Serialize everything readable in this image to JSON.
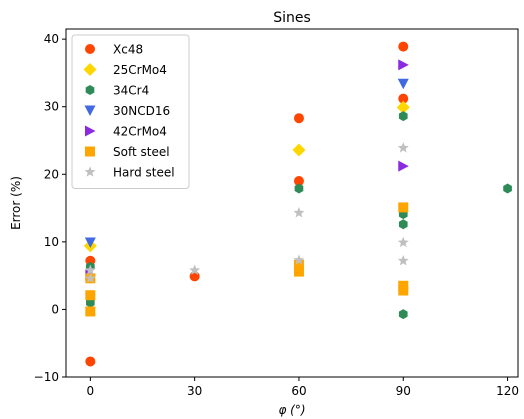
{
  "chart_data": {
    "type": "scatter",
    "title": "Sines",
    "xlabel": "φ (°)",
    "ylabel": "Error (%)",
    "xlim": [
      -7,
      123
    ],
    "ylim": [
      -10,
      41.5
    ],
    "xticks": [
      0,
      30,
      60,
      90,
      120
    ],
    "yticks": [
      -10,
      0,
      10,
      20,
      30,
      40
    ],
    "grid": false,
    "legend_position": "upper-left",
    "series": [
      {
        "name": "Xc48",
        "marker": "circle",
        "color": "#ff4500",
        "x": [
          0,
          0,
          30,
          60,
          60,
          90,
          90
        ],
        "y": [
          7.2,
          -7.7,
          4.9,
          28.3,
          19.0,
          38.9,
          31.2
        ]
      },
      {
        "name": "25CrMo4",
        "marker": "diamond",
        "color": "#ffd700",
        "x": [
          0,
          60,
          90
        ],
        "y": [
          9.4,
          23.6,
          29.9
        ]
      },
      {
        "name": "34Cr4",
        "marker": "hexagon",
        "color": "#2e8b57",
        "x": [
          0,
          0,
          60,
          90,
          90,
          90,
          90,
          120
        ],
        "y": [
          6.3,
          1.0,
          17.9,
          28.6,
          14.1,
          12.6,
          -0.7,
          17.9
        ]
      },
      {
        "name": "30NCD16",
        "marker": "triangle-down",
        "color": "#4169e1",
        "x": [
          0,
          90
        ],
        "y": [
          9.9,
          33.4
        ]
      },
      {
        "name": "42CrMo4",
        "marker": "triangle-right",
        "color": "#8a2be2",
        "x": [
          0,
          90,
          90
        ],
        "y": [
          5.1,
          36.2,
          21.2
        ]
      },
      {
        "name": "Soft steel",
        "marker": "square",
        "color": "#ffa500",
        "x": [
          0,
          0,
          0,
          60,
          60,
          90,
          90,
          90
        ],
        "y": [
          4.6,
          2.1,
          -0.3,
          6.6,
          5.6,
          15.1,
          3.5,
          2.8
        ]
      },
      {
        "name": "Hard steel",
        "marker": "star",
        "color": "#c0c0c0",
        "x": [
          0,
          0,
          30,
          60,
          60,
          90,
          90,
          90
        ],
        "y": [
          5.8,
          4.6,
          5.8,
          14.3,
          7.3,
          23.9,
          9.9,
          7.2
        ]
      }
    ]
  }
}
